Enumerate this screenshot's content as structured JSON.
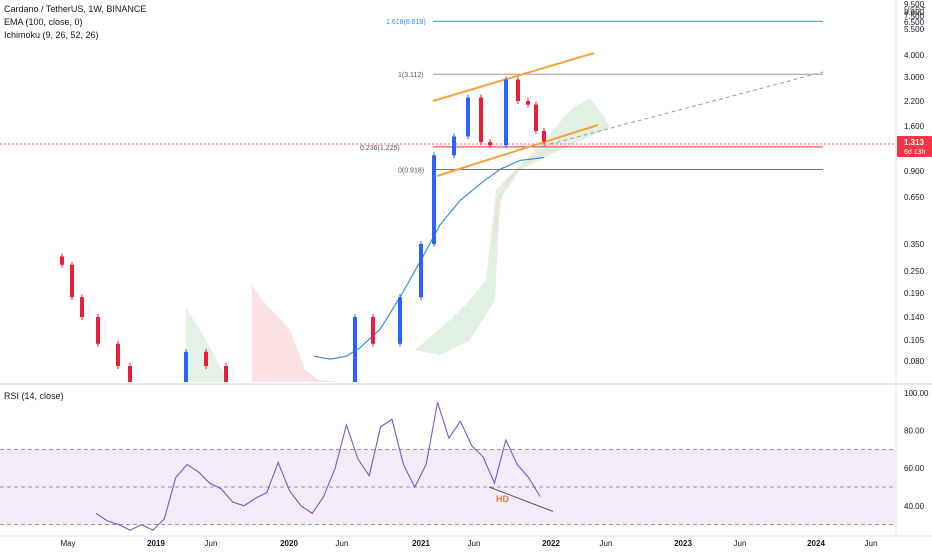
{
  "header": {
    "symbol": "Cardano / TetherUS, 1W, BINANCE",
    "ema": "EMA (100, close, 0)",
    "ichimoku": "Ichimoku (9, 26, 52, 26)",
    "rsi_title": "RSI (14, close)",
    "currency": "USDT"
  },
  "price_badge": {
    "value": "1.313",
    "countdown": "6d 13h"
  },
  "colors": {
    "up": "#2962ff",
    "down": "#e91e3a",
    "ema": "#3a8fd8",
    "channel": "#f7a23b",
    "fib_top": "#2196f3",
    "rsi": "#7e57c2",
    "rsi_band": "#ede7f6",
    "hd": "#ff7043",
    "cloud_green": "#c8e6c9",
    "cloud_red": "#f8c8c8"
  },
  "chart_data": [
    {
      "type": "candlestick",
      "title": "Cardano / TetherUS, 1W, BINANCE",
      "yscale": "log",
      "ylim": [
        0.06,
        8.6
      ],
      "y_ticks": [
        "9.500",
        "8.600",
        "7.500",
        "6.500",
        "5.500",
        "4.000",
        "3.000",
        "2.200",
        "1.600",
        "1.313",
        "0.900",
        "0.650",
        "0.350",
        "0.250",
        "0.190",
        "0.140",
        "0.105",
        "0.080"
      ],
      "x_ticks": [
        "May",
        "2019",
        "Jun",
        "2020",
        "Jun",
        "2021",
        "Jun",
        "2022",
        "Jun",
        "2023",
        "Jun",
        "2024",
        "Jun"
      ],
      "series_points": [
        {
          "t": "2018-05",
          "o": 0.3,
          "c": 0.27
        },
        {
          "t": "2018-06",
          "o": 0.27,
          "c": 0.18
        },
        {
          "t": "2018-07",
          "o": 0.18,
          "c": 0.14
        },
        {
          "t": "2018-09",
          "o": 0.14,
          "c": 0.1
        },
        {
          "t": "2018-11",
          "o": 0.1,
          "c": 0.075
        },
        {
          "t": "2018-12",
          "o": 0.075,
          "c": 0.06
        },
        {
          "t": "2019-04",
          "o": 0.06,
          "c": 0.09
        },
        {
          "t": "2019-06",
          "o": 0.09,
          "c": 0.075
        },
        {
          "t": "2019-09",
          "o": 0.075,
          "c": 0.05
        },
        {
          "t": "2020-03",
          "o": 0.05,
          "c": 0.035
        },
        {
          "t": "2020-06",
          "o": 0.035,
          "c": 0.06
        },
        {
          "t": "2020-08",
          "o": 0.06,
          "c": 0.14
        },
        {
          "t": "2020-10",
          "o": 0.14,
          "c": 0.1
        },
        {
          "t": "2020-12",
          "o": 0.1,
          "c": 0.18
        },
        {
          "t": "2021-01",
          "o": 0.18,
          "c": 0.35
        },
        {
          "t": "2021-02",
          "o": 0.35,
          "c": 1.1
        },
        {
          "t": "2021-04",
          "o": 1.1,
          "c": 1.4
        },
        {
          "t": "2021-05",
          "o": 1.4,
          "c": 2.3
        },
        {
          "t": "2021-06",
          "o": 2.3,
          "c": 1.3
        },
        {
          "t": "2021-07",
          "o": 1.3,
          "c": 1.25
        },
        {
          "t": "2021-08",
          "o": 1.25,
          "c": 2.9
        },
        {
          "t": "2021-09",
          "o": 2.9,
          "c": 2.2
        },
        {
          "t": "2021-10",
          "o": 2.2,
          "c": 2.1
        },
        {
          "t": "2021-11",
          "o": 2.1,
          "c": 1.5
        },
        {
          "t": "2021-12",
          "o": 1.5,
          "c": 1.313
        }
      ],
      "ema_100": [
        0.085,
        0.082,
        0.085,
        0.095,
        0.12,
        0.18,
        0.28,
        0.45,
        0.62,
        0.78,
        0.92,
        1.03,
        1.07
      ],
      "fib_levels": [
        {
          "label": "1.618(6.618)",
          "value": 6.618
        },
        {
          "label": "1(3.112)",
          "value": 3.112
        },
        {
          "label": "0.236(1.225)",
          "value": 1.225
        },
        {
          "label": "0(0.918)",
          "value": 0.918
        }
      ]
    },
    {
      "type": "line",
      "title": "RSI (14, close)",
      "ylim": [
        25,
        100
      ],
      "y_ticks": [
        "100.00",
        "80.00",
        "60.00",
        "40.00"
      ],
      "bands": [
        70,
        50,
        30
      ],
      "series": [
        {
          "values": [
            36,
            32,
            30,
            27,
            30,
            27,
            33,
            55,
            62,
            58,
            52,
            49,
            42,
            40,
            44,
            47,
            63,
            48,
            40,
            36,
            45,
            60,
            83,
            65,
            56,
            82,
            86,
            62,
            50,
            62,
            95,
            76,
            85,
            72,
            66,
            52,
            75,
            62,
            55,
            45
          ]
        }
      ],
      "annotation": "HD"
    }
  ]
}
